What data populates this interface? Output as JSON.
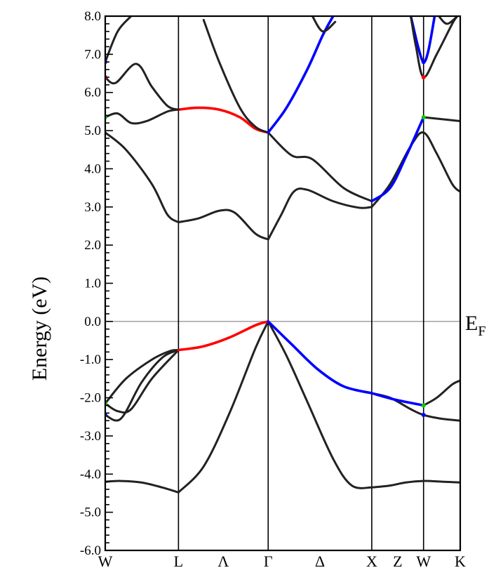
{
  "chart_data": {
    "type": "line",
    "ylabel": "Energy (eV)",
    "ylim": [
      -6.0,
      8.0
    ],
    "y_ticks": [
      8.0,
      7.0,
      6.0,
      5.0,
      4.0,
      3.0,
      2.0,
      1.0,
      0.0,
      -1.0,
      -2.0,
      -3.0,
      -4.0,
      -5.0,
      -6.0
    ],
    "y_tick_labels": [
      "8.0",
      "7.0",
      "6.0",
      "5.0",
      "4.0",
      "3.0",
      "2.0",
      "1.0",
      "0.0",
      "-1.0",
      "-2.0",
      "-3.0",
      "-4.0",
      "-5.0",
      "-6.0"
    ],
    "fermi_level": {
      "energy": 0.0,
      "label": "E",
      "subscript": "F"
    },
    "k_points": [
      {
        "label": "W",
        "k": 0.0
      },
      {
        "label": "L",
        "k": 0.707
      },
      {
        "label": "Λ",
        "k": null
      },
      {
        "label": "Γ",
        "k": 1.573
      },
      {
        "label": "Δ",
        "k": null
      },
      {
        "label": "X",
        "k": 2.573
      },
      {
        "label": "Z",
        "k": null
      },
      {
        "label": "W",
        "k": 3.073
      },
      {
        "label": "K",
        "k": 3.427
      }
    ],
    "vertical_lines_k": [
      0.707,
      1.573,
      2.573,
      3.073
    ],
    "xlim": [
      0.0,
      3.427
    ],
    "grid": false,
    "colors": {
      "band": "#222222",
      "red": "#ff0000",
      "blue": "#0000ff",
      "green": "#00cc00",
      "fermi": "#999999"
    },
    "series": [
      {
        "color": "black",
        "points": [
          [
            0.0,
            -2.45
          ],
          [
            0.15,
            -2.55
          ],
          [
            0.35,
            -1.6
          ],
          [
            0.55,
            -0.95
          ],
          [
            0.707,
            -0.75
          ]
        ]
      },
      {
        "color": "black",
        "points": [
          [
            0.0,
            -2.15
          ],
          [
            0.2,
            -1.5
          ],
          [
            0.45,
            -1.0
          ],
          [
            0.62,
            -0.78
          ],
          [
            0.707,
            -0.75
          ]
        ]
      },
      {
        "color": "black",
        "points": [
          [
            0.0,
            -2.15
          ],
          [
            0.12,
            -2.35
          ],
          [
            0.25,
            -2.3
          ],
          [
            0.45,
            -1.5
          ],
          [
            0.707,
            -0.75
          ]
        ]
      },
      {
        "color": "black",
        "points": [
          [
            0.0,
            -4.2
          ],
          [
            0.15,
            -4.18
          ],
          [
            0.35,
            -4.22
          ],
          [
            0.55,
            -4.35
          ],
          [
            0.707,
            -4.48
          ]
        ]
      },
      {
        "color": "black",
        "points": [
          [
            0.707,
            -4.48
          ],
          [
            0.95,
            -3.8
          ],
          [
            1.2,
            -2.4
          ],
          [
            1.45,
            -0.7
          ],
          [
            1.573,
            0.0
          ]
        ]
      },
      {
        "color": "red",
        "points": [
          [
            0.707,
            -0.75
          ],
          [
            0.95,
            -0.65
          ],
          [
            1.2,
            -0.42
          ],
          [
            1.45,
            -0.1
          ],
          [
            1.573,
            0.0
          ]
        ]
      },
      {
        "color": "black",
        "points": [
          [
            1.573,
            0.0
          ],
          [
            1.75,
            -0.9
          ],
          [
            1.95,
            -2.1
          ],
          [
            2.2,
            -3.6
          ],
          [
            2.38,
            -4.3
          ],
          [
            2.573,
            -4.35
          ]
        ]
      },
      {
        "color": "blue",
        "points": [
          [
            1.573,
            0.0
          ],
          [
            1.8,
            -0.6
          ],
          [
            2.05,
            -1.25
          ],
          [
            2.3,
            -1.7
          ],
          [
            2.573,
            -1.88
          ]
        ]
      },
      {
        "color": "black",
        "points": [
          [
            2.573,
            -4.35
          ],
          [
            2.75,
            -4.3
          ],
          [
            2.9,
            -4.22
          ],
          [
            3.073,
            -4.18
          ],
          [
            3.25,
            -4.2
          ],
          [
            3.427,
            -4.22
          ]
        ]
      },
      {
        "color": "black",
        "points": [
          [
            2.573,
            -1.88
          ],
          [
            2.75,
            -2.0
          ],
          [
            2.95,
            -2.3
          ],
          [
            3.073,
            -2.45
          ],
          [
            3.25,
            -2.55
          ],
          [
            3.427,
            -2.6
          ]
        ]
      },
      {
        "color": "blue",
        "points": [
          [
            2.573,
            -1.88
          ],
          [
            2.8,
            -2.05
          ],
          [
            3.073,
            -2.2
          ]
        ]
      },
      {
        "color": "black",
        "points": [
          [
            3.073,
            -2.2
          ],
          [
            3.2,
            -2.0
          ],
          [
            3.35,
            -1.65
          ],
          [
            3.427,
            -1.55
          ]
        ]
      },
      {
        "color": "black",
        "points": [
          [
            0.0,
            4.95
          ],
          [
            0.2,
            4.5
          ],
          [
            0.45,
            3.6
          ],
          [
            0.6,
            2.8
          ],
          [
            0.707,
            2.6
          ]
        ]
      },
      {
        "color": "black",
        "points": [
          [
            0.707,
            2.6
          ],
          [
            0.9,
            2.7
          ],
          [
            1.1,
            2.9
          ],
          [
            1.25,
            2.85
          ],
          [
            1.45,
            2.3
          ],
          [
            1.573,
            2.15
          ]
        ]
      },
      {
        "color": "black",
        "points": [
          [
            1.573,
            2.15
          ],
          [
            1.7,
            2.8
          ],
          [
            1.82,
            3.4
          ],
          [
            1.95,
            3.45
          ],
          [
            2.2,
            3.15
          ],
          [
            2.45,
            2.98
          ],
          [
            2.573,
            3.0
          ]
        ]
      },
      {
        "color": "black",
        "points": [
          [
            2.573,
            3.0
          ],
          [
            2.75,
            3.6
          ],
          [
            2.95,
            4.6
          ],
          [
            3.073,
            4.95
          ],
          [
            3.2,
            4.4
          ],
          [
            3.35,
            3.6
          ],
          [
            3.427,
            3.4
          ]
        ]
      },
      {
        "color": "black",
        "points": [
          [
            0.0,
            5.35
          ],
          [
            0.12,
            5.45
          ],
          [
            0.25,
            5.2
          ],
          [
            0.4,
            5.25
          ],
          [
            0.6,
            5.5
          ],
          [
            0.707,
            5.55
          ]
        ]
      },
      {
        "color": "red",
        "points": [
          [
            0.707,
            5.55
          ],
          [
            0.9,
            5.6
          ],
          [
            1.1,
            5.55
          ],
          [
            1.3,
            5.35
          ],
          [
            1.45,
            5.05
          ],
          [
            1.573,
            4.95
          ]
        ]
      },
      {
        "color": "black",
        "points": [
          [
            1.573,
            4.95
          ],
          [
            1.8,
            4.35
          ],
          [
            2.0,
            4.25
          ],
          [
            2.3,
            3.5
          ],
          [
            2.573,
            3.15
          ]
        ]
      },
      {
        "color": "blue",
        "points": [
          [
            2.573,
            3.15
          ],
          [
            2.75,
            3.5
          ],
          [
            2.9,
            4.3
          ],
          [
            3.073,
            5.35
          ]
        ]
      },
      {
        "color": "black",
        "points": [
          [
            3.073,
            5.35
          ],
          [
            3.25,
            5.3
          ],
          [
            3.427,
            5.25
          ]
        ]
      },
      {
        "color": "black",
        "points": [
          [
            0.0,
            6.4
          ],
          [
            0.1,
            6.25
          ],
          [
            0.3,
            6.75
          ],
          [
            0.45,
            6.15
          ],
          [
            0.6,
            5.65
          ],
          [
            0.707,
            5.55
          ]
        ]
      },
      {
        "color": "black",
        "points": [
          [
            0.0,
            6.8
          ],
          [
            0.12,
            7.6
          ],
          [
            0.25,
            8.0
          ]
        ]
      },
      {
        "color": "black",
        "points": [
          [
            0.95,
            7.9
          ],
          [
            1.1,
            6.8
          ],
          [
            1.3,
            5.6
          ],
          [
            1.45,
            5.1
          ],
          [
            1.573,
            4.95
          ]
        ]
      },
      {
        "color": "blue",
        "points": [
          [
            1.573,
            4.95
          ],
          [
            1.75,
            5.6
          ],
          [
            1.95,
            6.6
          ],
          [
            2.1,
            7.5
          ],
          [
            2.2,
            8.0
          ]
        ]
      },
      {
        "color": "black",
        "points": [
          [
            2.0,
            8.0
          ],
          [
            2.1,
            7.6
          ],
          [
            2.22,
            7.85
          ]
        ]
      },
      {
        "color": "blue",
        "points": [
          [
            2.95,
            8.0
          ],
          [
            3.02,
            7.2
          ],
          [
            3.073,
            6.8
          ],
          [
            3.12,
            7.1
          ],
          [
            3.18,
            8.0
          ]
        ]
      },
      {
        "color": "black",
        "points": [
          [
            2.95,
            8.0
          ],
          [
            3.0,
            7.2
          ],
          [
            3.073,
            6.4
          ],
          [
            3.2,
            7.0
          ],
          [
            3.35,
            7.8
          ],
          [
            3.4,
            8.0
          ]
        ]
      },
      {
        "color": "black",
        "points": [
          [
            3.22,
            8.0
          ],
          [
            3.3,
            7.8
          ],
          [
            3.4,
            8.0
          ]
        ]
      }
    ],
    "markers": [
      {
        "color": "green",
        "k": 0.0,
        "e": 5.35
      },
      {
        "color": "green",
        "k": 0.0,
        "e": -2.15
      },
      {
        "color": "red",
        "k": 0.0,
        "e": 6.4
      },
      {
        "color": "blue",
        "k": 0.0,
        "e": 6.8
      },
      {
        "color": "blue",
        "k": 0.0,
        "e": -2.45
      },
      {
        "color": "green",
        "k": 3.073,
        "e": 5.35
      },
      {
        "color": "green",
        "k": 3.073,
        "e": -2.2
      },
      {
        "color": "blue",
        "k": 3.073,
        "e": -2.45
      },
      {
        "color": "red",
        "k": 3.073,
        "e": 6.4
      },
      {
        "color": "blue",
        "k": 3.073,
        "e": 6.8
      }
    ]
  }
}
